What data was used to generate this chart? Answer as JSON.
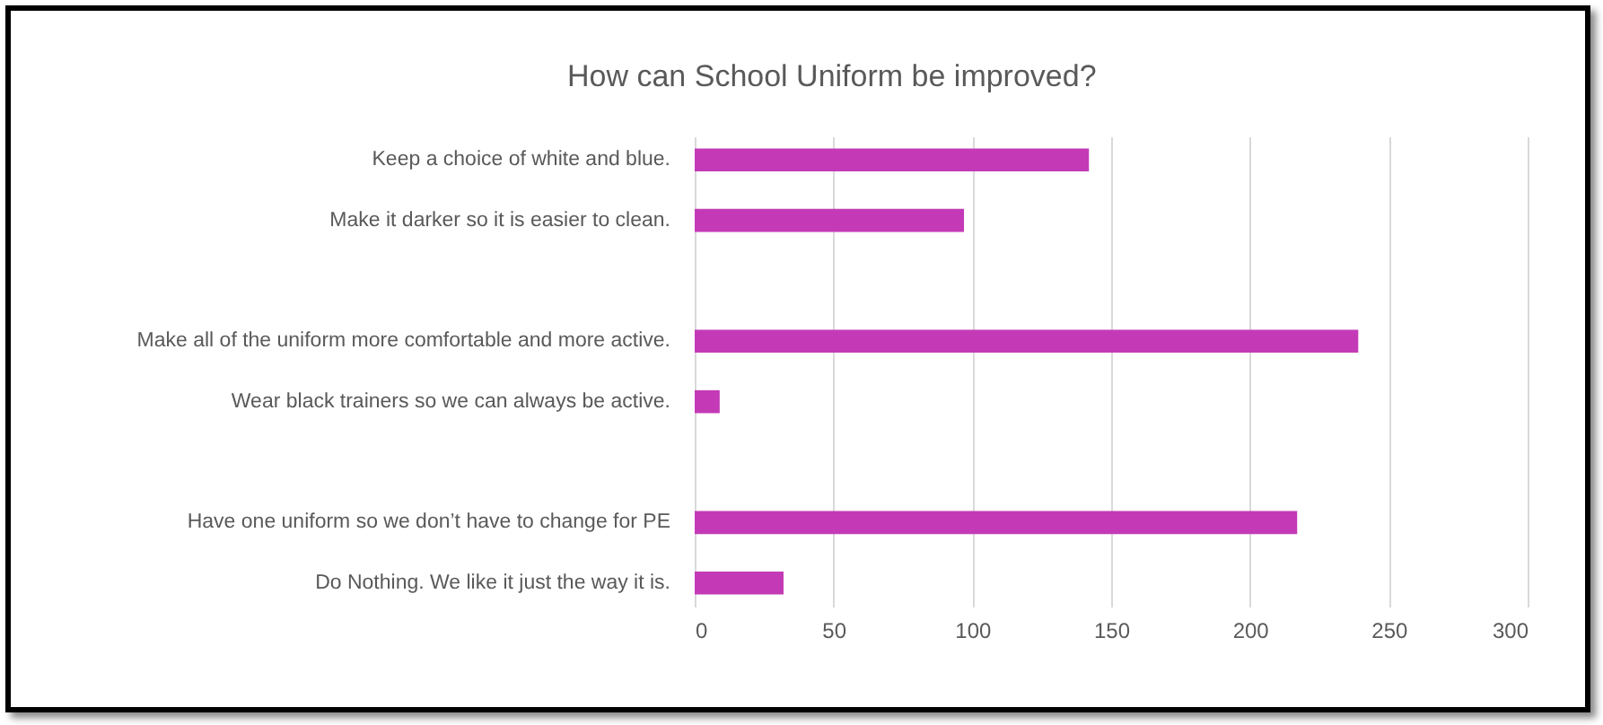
{
  "chart_data": {
    "type": "bar",
    "orientation": "horizontal",
    "title": "How can School Uniform be improved?",
    "categories": [
      "Keep a choice of white and blue.",
      "Make it darker so it is easier to clean.",
      null,
      "Make all of the uniform more comfortable and more active.",
      "Wear black trainers so we can always be active.",
      null,
      "Have one uniform so we don’t have to change for PE",
      "Do Nothing. We like it just the way it is."
    ],
    "values": [
      142,
      97,
      null,
      239,
      9,
      null,
      217,
      32
    ],
    "color": "#c43ab6",
    "xlim": [
      0,
      300
    ],
    "xticks": [
      0,
      50,
      100,
      150,
      200,
      250,
      300
    ],
    "grid": "x"
  }
}
